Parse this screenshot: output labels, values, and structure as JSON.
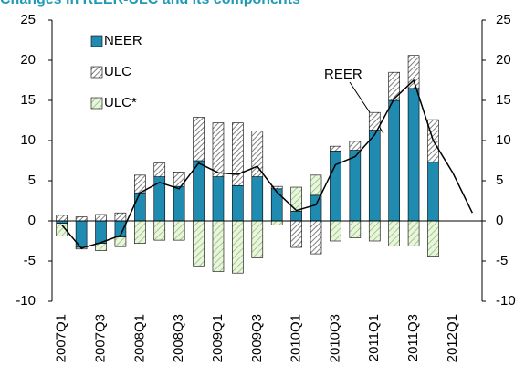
{
  "chart_data": {
    "type": "bar",
    "stacked": true,
    "title": "Changes in REER-ULC and its components",
    "categories": [
      "2007Q1",
      null,
      "2007Q3",
      null,
      "2008Q1",
      null,
      "2008Q3",
      null,
      "2009Q1",
      null,
      "2009Q3",
      null,
      "2010Q1",
      null,
      "2010Q3",
      null,
      "2011Q1",
      null,
      "2011Q3",
      null,
      "2012Q1",
      null
    ],
    "series": [
      {
        "name": "NEER",
        "color": "#1f8bb0",
        "hatch": false,
        "values": [
          -0.3,
          -3.3,
          -2.8,
          -2.0,
          3.5,
          5.5,
          4.3,
          7.5,
          5.5,
          4.4,
          5.5,
          4.0,
          1.2,
          3.2,
          8.7,
          8.8,
          11.3,
          15.0,
          16.5,
          7.3,
          null,
          null
        ]
      },
      {
        "name": "ULC",
        "color": "#7f7f7f",
        "hatch": true,
        "values": [
          0.7,
          0.5,
          0.8,
          1.0,
          2.2,
          1.7,
          1.8,
          5.4,
          6.7,
          7.8,
          5.7,
          0.3,
          -3.3,
          -4.1,
          0.6,
          1.1,
          2.2,
          3.5,
          4.1,
          5.3,
          null,
          null
        ]
      },
      {
        "name": "ULC*",
        "color": "#8cc26a",
        "hatch": true,
        "values": [
          -1.6,
          -0.2,
          -0.9,
          -1.2,
          -2.8,
          -2.4,
          -2.4,
          -5.6,
          -6.3,
          -6.5,
          -4.6,
          -0.5,
          3.0,
          2.5,
          -2.5,
          -2.1,
          -2.5,
          -3.1,
          -3.1,
          -4.4,
          null,
          null
        ]
      },
      {
        "name": "REER",
        "type": "line",
        "color": "#000000",
        "values": [
          -0.5,
          -3.4,
          -2.7,
          -1.8,
          3.5,
          4.8,
          4.0,
          7.2,
          6.0,
          5.8,
          6.8,
          3.6,
          1.3,
          2.0,
          7.0,
          8.0,
          10.7,
          15.2,
          17.5,
          10.0,
          6.0,
          1.0
        ]
      }
    ],
    "annotation": "REER",
    "ylim": [
      -10,
      25
    ],
    "yticks": [
      -10,
      -5,
      0,
      5,
      10,
      15,
      20,
      25
    ],
    "y2lim": [
      -10,
      25
    ],
    "y2ticks": [
      -10,
      -5,
      0,
      5,
      10,
      15,
      20,
      25
    ],
    "legend": "top-left"
  }
}
